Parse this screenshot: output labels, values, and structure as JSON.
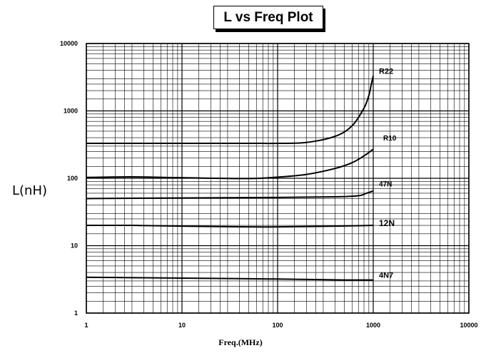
{
  "chart_data": {
    "type": "line",
    "title": "L vs Freq Plot",
    "xlabel": "Freq.(MHz)",
    "ylabel": "L(nH)",
    "x_scale": "log",
    "y_scale": "log",
    "xlim": [
      1,
      10000
    ],
    "ylim": [
      1,
      10000
    ],
    "x_ticks": [
      "1",
      "10",
      "100",
      "1000",
      "10000"
    ],
    "y_ticks": [
      "1",
      "10",
      "100",
      "1000",
      "10000"
    ],
    "grid": true,
    "legend": "none (series labeled at right end of each curve)",
    "series": [
      {
        "name": "R22",
        "x": [
          1,
          10,
          50,
          100,
          200,
          400,
          600,
          800,
          900,
          950,
          1000
        ],
        "y": [
          330,
          330,
          330,
          330,
          340,
          420,
          600,
          1100,
          1700,
          2400,
          3300
        ]
      },
      {
        "name": "R10",
        "x": [
          1,
          3,
          10,
          50,
          100,
          200,
          400,
          600,
          800,
          1000
        ],
        "y": [
          103,
          105,
          102,
          99,
          104,
          114,
          140,
          170,
          215,
          270
        ]
      },
      {
        "name": "47N",
        "x": [
          1,
          10,
          100,
          400,
          700,
          850,
          1000
        ],
        "y": [
          50,
          51,
          52,
          53,
          55,
          60,
          65
        ]
      },
      {
        "name": "12N",
        "x": [
          1,
          3,
          10,
          50,
          100,
          400,
          1000
        ],
        "y": [
          20,
          20,
          19.5,
          19,
          19,
          19.5,
          20
        ]
      },
      {
        "name": "4N7",
        "x": [
          1,
          3,
          10,
          100,
          500,
          1000
        ],
        "y": [
          3.4,
          3.35,
          3.3,
          3.2,
          3.1,
          3.1
        ]
      }
    ]
  }
}
